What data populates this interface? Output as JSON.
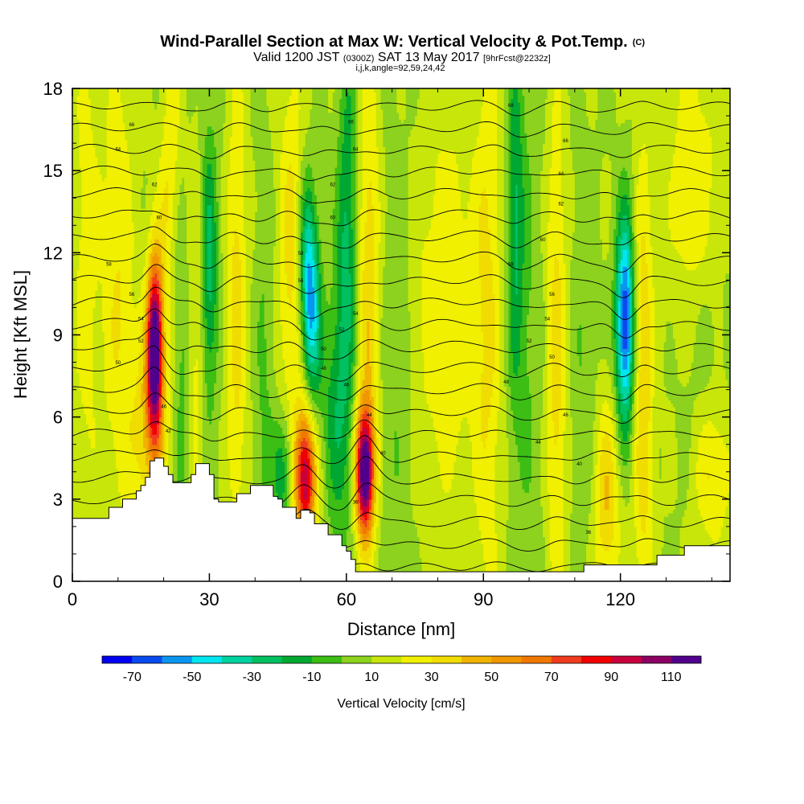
{
  "chart_data": {
    "type": "heatmap",
    "title": "Wind-Parallel Section at Max W: Vertical Velocity & Pot.Temp.",
    "title_mark": "(C)",
    "subtitle_parts": [
      "Valid 1200 JST",
      "(0300Z)",
      "SAT 13 May 2017",
      "[9hrFcst@2232z]"
    ],
    "subtitle2": "i,j,k,angle=92,59,24,42",
    "xlabel": "Distance [nm]",
    "ylabel": "Height [Kft MSL]",
    "xlim": [
      0,
      144
    ],
    "ylim": [
      0,
      18
    ],
    "x_ticks": [
      "0",
      "30",
      "60",
      "90",
      "120"
    ],
    "y_ticks": [
      "0",
      "3",
      "6",
      "9",
      "12",
      "15",
      "18"
    ],
    "x_tick_values": [
      0,
      30,
      60,
      90,
      120
    ],
    "y_tick_values": [
      0,
      3,
      6,
      9,
      12,
      15,
      18
    ],
    "colorbar": {
      "label": "Vertical Velocity [cm/s]",
      "ticks": [
        "-70",
        "-50",
        "-30",
        "-10",
        "10",
        "30",
        "50",
        "70",
        "90",
        "110"
      ],
      "bins": [
        -80,
        -70,
        -60,
        -50,
        -40,
        -30,
        -20,
        -10,
        0,
        10,
        20,
        30,
        40,
        50,
        60,
        70,
        80,
        90,
        100,
        110,
        120
      ],
      "colors": [
        "#0000f0",
        "#0a4bf0",
        "#0a96f0",
        "#00e6f0",
        "#00d2a0",
        "#00c060",
        "#00a832",
        "#3cbe14",
        "#8cd21e",
        "#c8e60a",
        "#f0f000",
        "#f0dc00",
        "#f0b400",
        "#f09600",
        "#f07800",
        "#f03c1e",
        "#f00000",
        "#c8003c",
        "#8c0064",
        "#50008c"
      ]
    },
    "background_w": 10,
    "plumes": [
      {
        "x": 18,
        "z": 8.5,
        "sx": 1.2,
        "sz": 2.2,
        "w": 110,
        "tilt": 0
      },
      {
        "x": 17,
        "z": 5.5,
        "sx": 3.0,
        "sz": 2.6,
        "w": 30,
        "tilt": 0
      },
      {
        "x": 21,
        "z": 14.5,
        "sx": 1.6,
        "sz": 4.0,
        "w": 20,
        "tilt": 0.25
      },
      {
        "x": 10,
        "z": 11.0,
        "sx": 2.5,
        "sz": 6.0,
        "w": 20,
        "tilt": 0
      },
      {
        "x": 3,
        "z": 12.0,
        "sx": 2.0,
        "sz": 7.0,
        "w": 15,
        "tilt": 0
      },
      {
        "x": 24,
        "z": 6.0,
        "sx": 1.4,
        "sz": 5.0,
        "w": -15,
        "tilt": 0
      },
      {
        "x": 30,
        "z": 11.5,
        "sx": 1.3,
        "sz": 3.5,
        "w": -35,
        "tilt": 0
      },
      {
        "x": 27,
        "z": 8.0,
        "sx": 1.3,
        "sz": 5.0,
        "w": 15,
        "tilt": 0
      },
      {
        "x": 36,
        "z": 10.0,
        "sx": 1.5,
        "sz": 6.0,
        "w": 25,
        "tilt": 0
      },
      {
        "x": 42,
        "z": 7.0,
        "sx": 1.5,
        "sz": 6.0,
        "w": -12,
        "tilt": 0
      },
      {
        "x": 46,
        "z": 4.0,
        "sx": 1.5,
        "sz": 1.5,
        "w": -30,
        "tilt": 0
      },
      {
        "x": 52,
        "z": 10.5,
        "sx": 1.5,
        "sz": 2.6,
        "w": -70,
        "tilt": -0.15
      },
      {
        "x": 51,
        "z": 3.8,
        "sx": 1.6,
        "sz": 1.7,
        "w": 90,
        "tilt": 0
      },
      {
        "x": 48,
        "z": 12.0,
        "sx": 2.0,
        "sz": 5.0,
        "w": 25,
        "tilt": 0
      },
      {
        "x": 60,
        "z": 11.0,
        "sx": 1.6,
        "sz": 6.0,
        "w": -35,
        "tilt": 0.05
      },
      {
        "x": 57,
        "z": 6.0,
        "sx": 1.6,
        "sz": 3.0,
        "w": -20,
        "tilt": 0
      },
      {
        "x": 64,
        "z": 4.0,
        "sx": 1.4,
        "sz": 1.6,
        "w": 110,
        "tilt": 0
      },
      {
        "x": 65,
        "z": 10.5,
        "sx": 1.8,
        "sz": 6.0,
        "w": 30,
        "tilt": 0
      },
      {
        "x": 70,
        "z": 7.0,
        "sx": 3.0,
        "sz": 7.0,
        "w": -10,
        "tilt": 0
      },
      {
        "x": 82,
        "z": 10.0,
        "sx": 5.0,
        "sz": 5.0,
        "w": 20,
        "tilt": 0
      },
      {
        "x": 91,
        "z": 9.5,
        "sx": 2.0,
        "sz": 8.0,
        "w": 20,
        "tilt": 0
      },
      {
        "x": 97,
        "z": 13.0,
        "sx": 1.3,
        "sz": 5.0,
        "w": -30,
        "tilt": 0
      },
      {
        "x": 100,
        "z": 9.0,
        "sx": 2.0,
        "sz": 8.0,
        "w": -10,
        "tilt": 0
      },
      {
        "x": 106,
        "z": 8.0,
        "sx": 1.5,
        "sz": 7.0,
        "w": 25,
        "tilt": 0
      },
      {
        "x": 112,
        "z": 8.0,
        "sx": 2.0,
        "sz": 5.0,
        "w": -10,
        "tilt": 0
      },
      {
        "x": 117,
        "z": 3.0,
        "sx": 2.0,
        "sz": 2.5,
        "w": 30,
        "tilt": 0
      },
      {
        "x": 121,
        "z": 9.5,
        "sx": 1.4,
        "sz": 2.7,
        "w": -80,
        "tilt": 0
      },
      {
        "x": 125,
        "z": 7.0,
        "sx": 1.5,
        "sz": 6.0,
        "w": 30,
        "tilt": 0
      },
      {
        "x": 136,
        "z": 14.0,
        "sx": 4.0,
        "sz": 4.0,
        "w": 20,
        "tilt": 0
      },
      {
        "x": 138,
        "z": 8.0,
        "sx": 4.0,
        "sz": 4.0,
        "w": -10,
        "tilt": 0
      },
      {
        "x": 140,
        "z": 4.0,
        "sx": 3.0,
        "sz": 2.0,
        "w": 25,
        "tilt": 0
      }
    ],
    "terrain": [
      [
        0,
        2.3
      ],
      [
        3,
        2.3
      ],
      [
        7,
        2.3
      ],
      [
        8,
        2.7
      ],
      [
        10,
        2.7
      ],
      [
        11,
        3.0
      ],
      [
        12,
        3.0
      ],
      [
        13,
        3.0
      ],
      [
        14,
        3.3
      ],
      [
        15,
        3.5
      ],
      [
        16,
        3.8
      ],
      [
        17,
        4.4
      ],
      [
        18,
        4.5
      ],
      [
        19,
        4.5
      ],
      [
        20,
        4.2
      ],
      [
        21,
        3.9
      ],
      [
        22,
        3.6
      ],
      [
        24,
        3.6
      ],
      [
        26,
        3.9
      ],
      [
        27,
        4.3
      ],
      [
        29,
        4.3
      ],
      [
        30,
        3.9
      ],
      [
        31,
        3.0
      ],
      [
        32,
        2.9
      ],
      [
        35,
        2.9
      ],
      [
        36,
        3.2
      ],
      [
        38,
        3.2
      ],
      [
        39,
        3.5
      ],
      [
        42,
        3.5
      ],
      [
        44,
        3.1
      ],
      [
        45,
        3.0
      ],
      [
        46,
        2.7
      ],
      [
        48,
        2.7
      ],
      [
        49,
        2.3
      ],
      [
        50,
        2.6
      ],
      [
        52,
        2.5
      ],
      [
        53,
        2.1
      ],
      [
        55,
        2.1
      ],
      [
        56,
        1.7
      ],
      [
        59,
        1.3
      ],
      [
        60,
        1.1
      ],
      [
        61,
        0.8
      ],
      [
        62,
        0.35
      ],
      [
        70,
        0.35
      ],
      [
        80,
        0.35
      ],
      [
        90,
        0.35
      ],
      [
        100,
        0.35
      ],
      [
        110,
        0.35
      ],
      [
        112,
        0.6
      ],
      [
        120,
        0.6
      ],
      [
        127,
        0.6
      ],
      [
        128,
        0.95
      ],
      [
        133,
        0.95
      ],
      [
        134,
        1.3
      ],
      [
        144,
        1.3
      ]
    ],
    "theta_levels": [
      26,
      28,
      30,
      32,
      34,
      36,
      38,
      40,
      42,
      44,
      46,
      48,
      50,
      52,
      54,
      56,
      58,
      60,
      62,
      64,
      66,
      68
    ],
    "theta_base_height": 0.5,
    "theta_step_kft": 0.8,
    "theta_inline_labels": [
      {
        "x": 13,
        "z": 16.7,
        "t": "66"
      },
      {
        "x": 10,
        "z": 15.8,
        "t": "64"
      },
      {
        "x": 18,
        "z": 14.5,
        "t": "62"
      },
      {
        "x": 19,
        "z": 13.3,
        "t": "60"
      },
      {
        "x": 8,
        "z": 11.6,
        "t": "58"
      },
      {
        "x": 13,
        "z": 10.5,
        "t": "56"
      },
      {
        "x": 15,
        "z": 9.6,
        "t": "54"
      },
      {
        "x": 15,
        "z": 8.8,
        "t": "52"
      },
      {
        "x": 10,
        "z": 8.0,
        "t": "50"
      },
      {
        "x": 20,
        "z": 6.4,
        "t": "46"
      },
      {
        "x": 21,
        "z": 5.5,
        "t": "42"
      },
      {
        "x": 61,
        "z": 16.8,
        "t": "66"
      },
      {
        "x": 62,
        "z": 15.8,
        "t": "64"
      },
      {
        "x": 57,
        "z": 14.5,
        "t": "62"
      },
      {
        "x": 57,
        "z": 13.3,
        "t": "60"
      },
      {
        "x": 50,
        "z": 12.0,
        "t": "58"
      },
      {
        "x": 50,
        "z": 11.0,
        "t": "56"
      },
      {
        "x": 62,
        "z": 9.8,
        "t": "54"
      },
      {
        "x": 59,
        "z": 9.2,
        "t": "52"
      },
      {
        "x": 55,
        "z": 8.5,
        "t": "50"
      },
      {
        "x": 55,
        "z": 7.8,
        "t": "48"
      },
      {
        "x": 60,
        "z": 7.2,
        "t": "46"
      },
      {
        "x": 65,
        "z": 6.1,
        "t": "44"
      },
      {
        "x": 68,
        "z": 4.7,
        "t": "40"
      },
      {
        "x": 62,
        "z": 2.9,
        "t": "36"
      },
      {
        "x": 96,
        "z": 17.4,
        "t": "68"
      },
      {
        "x": 108,
        "z": 16.1,
        "t": "66"
      },
      {
        "x": 107,
        "z": 14.9,
        "t": "64"
      },
      {
        "x": 107,
        "z": 13.8,
        "t": "62"
      },
      {
        "x": 103,
        "z": 12.5,
        "t": "60"
      },
      {
        "x": 96,
        "z": 11.6,
        "t": "58"
      },
      {
        "x": 105,
        "z": 10.5,
        "t": "56"
      },
      {
        "x": 104,
        "z": 9.6,
        "t": "54"
      },
      {
        "x": 100,
        "z": 8.8,
        "t": "52"
      },
      {
        "x": 105,
        "z": 8.2,
        "t": "50"
      },
      {
        "x": 95,
        "z": 7.3,
        "t": "48"
      },
      {
        "x": 108,
        "z": 6.1,
        "t": "46"
      },
      {
        "x": 102,
        "z": 5.1,
        "t": "44"
      },
      {
        "x": 111,
        "z": 4.3,
        "t": "40"
      },
      {
        "x": 113,
        "z": 1.8,
        "t": "36"
      }
    ]
  }
}
